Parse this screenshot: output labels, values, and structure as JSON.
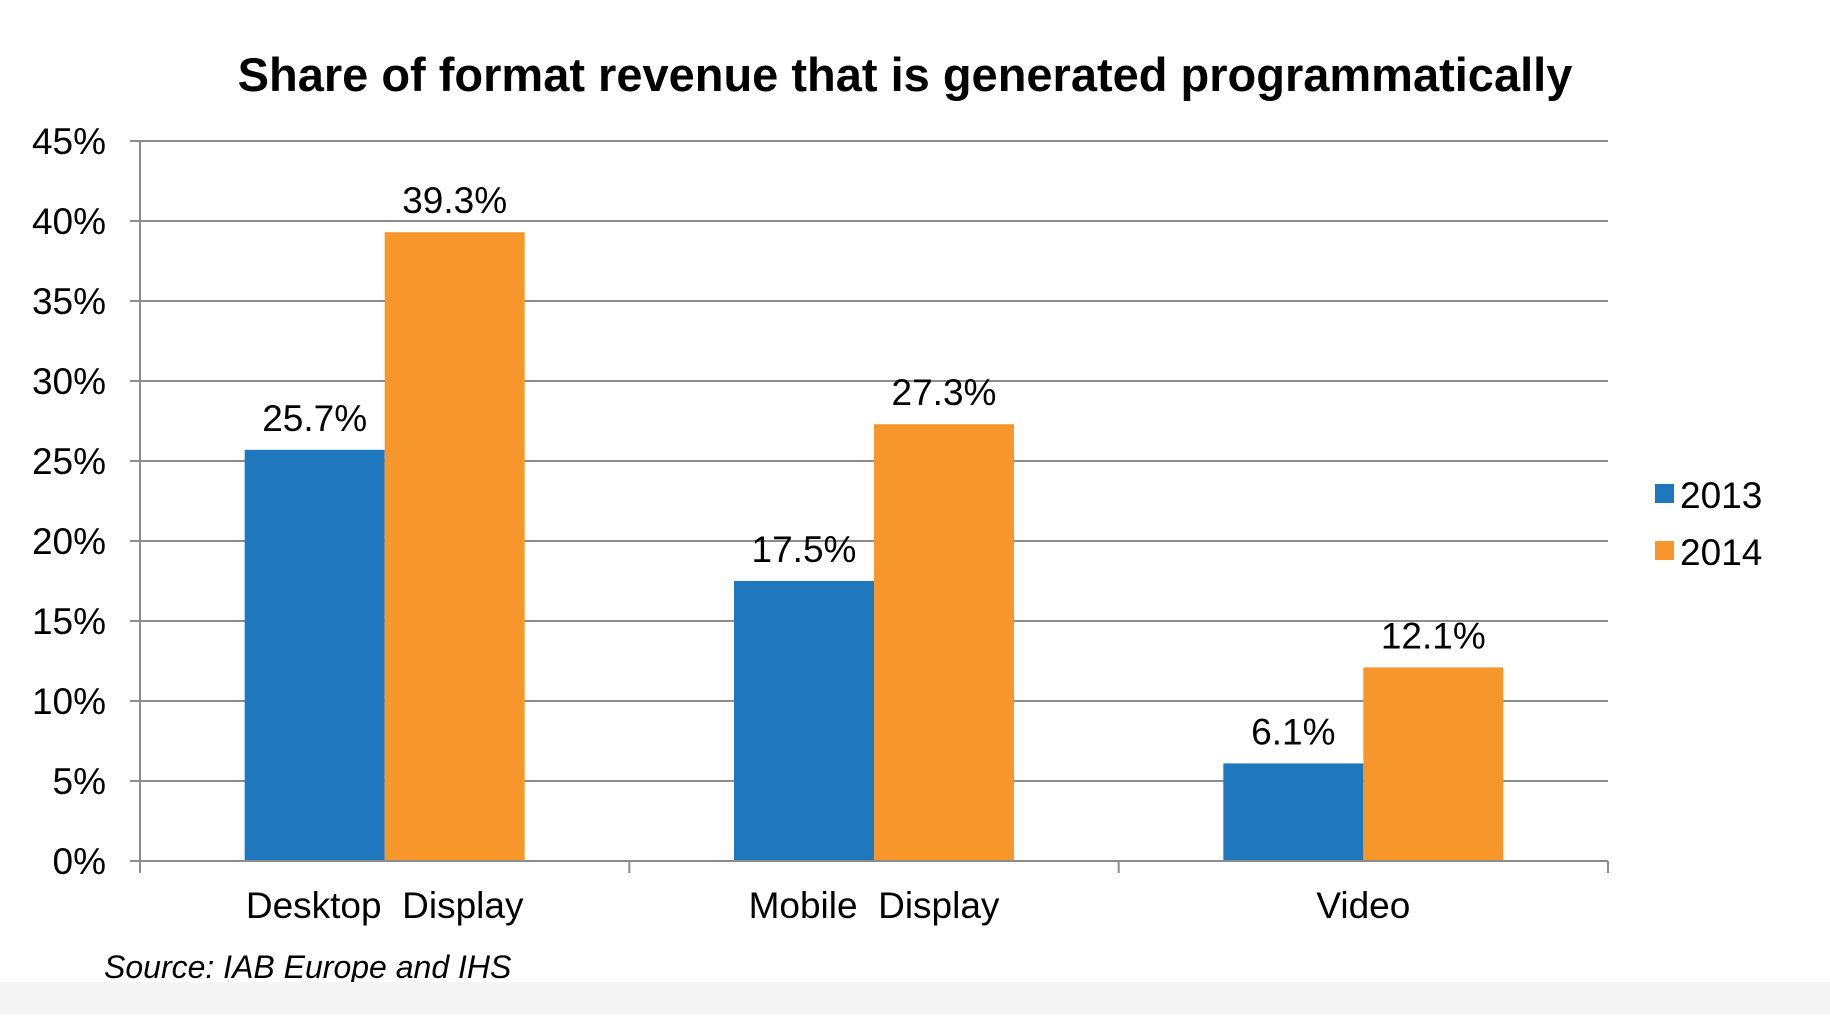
{
  "chart_data": {
    "type": "bar",
    "title": "Share of format revenue that is generated programmatically",
    "xlabel": "",
    "ylabel": "",
    "ylim": [
      0,
      45
    ],
    "yticks": [
      "0%",
      "5%",
      "10%",
      "15%",
      "20%",
      "25%",
      "30%",
      "35%",
      "40%",
      "45%"
    ],
    "categories": [
      "Desktop  Display",
      "Mobile  Display",
      "Video"
    ],
    "series": [
      {
        "name": "2013",
        "color": "#1f78be",
        "values": [
          25.7,
          17.5,
          6.1
        ],
        "labels": [
          "25.7%",
          "17.5%",
          "6.1%"
        ]
      },
      {
        "name": "2014",
        "color": "#f7962b",
        "values": [
          39.3,
          27.3,
          12.1
        ],
        "labels": [
          "39.3%",
          "27.3%",
          "12.1%"
        ]
      }
    ],
    "grid": true,
    "legend_position": "right",
    "source": "Source: IAB Europe and IHS"
  }
}
